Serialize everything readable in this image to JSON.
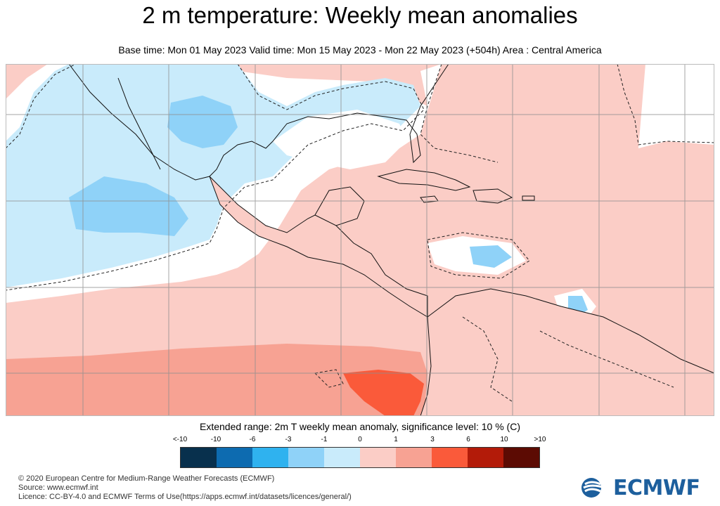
{
  "title": "2 m temperature: Weekly mean anomalies",
  "subtitle": "Base time: Mon 01 May 2023 Valid time: Mon 15 May 2023 - Mon 22 May 2023 (+504h) Area : Central America",
  "legend": {
    "title": "Extended range: 2m T weekly mean anomaly, significance level: 10 % (C)",
    "tick_labels": [
      "<-10",
      "-10",
      "-6",
      "-3",
      "-1",
      "0",
      "1",
      "3",
      "6",
      "10",
      ">10"
    ],
    "colors": [
      "#08304d",
      "#0d6bb0",
      "#2fb2ef",
      "#8fd2f8",
      "#c9ebfb",
      "#fbcdc6",
      "#f7a293",
      "#fa5a3a",
      "#b31b09",
      "#5c0b03"
    ]
  },
  "map_colors": {
    "warm_weak": "#fbcdc6",
    "warm_mid": "#f7a293",
    "warm_strong": "#fa5a3a",
    "cool_weak": "#c9ebfb",
    "cool_mid": "#8fd2f8",
    "neutral": "#ffffff",
    "coast": "#111111",
    "grid": "#8f8f8f"
  },
  "credits": {
    "line1": "© 2020 European Centre for Medium-Range Weather Forecasts (ECMWF)",
    "line2": "Source: www.ecmwf.int",
    "line3": "Licence: CC-BY-4.0 and ECMWF Terms of Use(https://apps.ecmwf.int/datasets/licences/general/)"
  },
  "logo": {
    "text": "ECMWF",
    "color": "#1d5f9d"
  }
}
